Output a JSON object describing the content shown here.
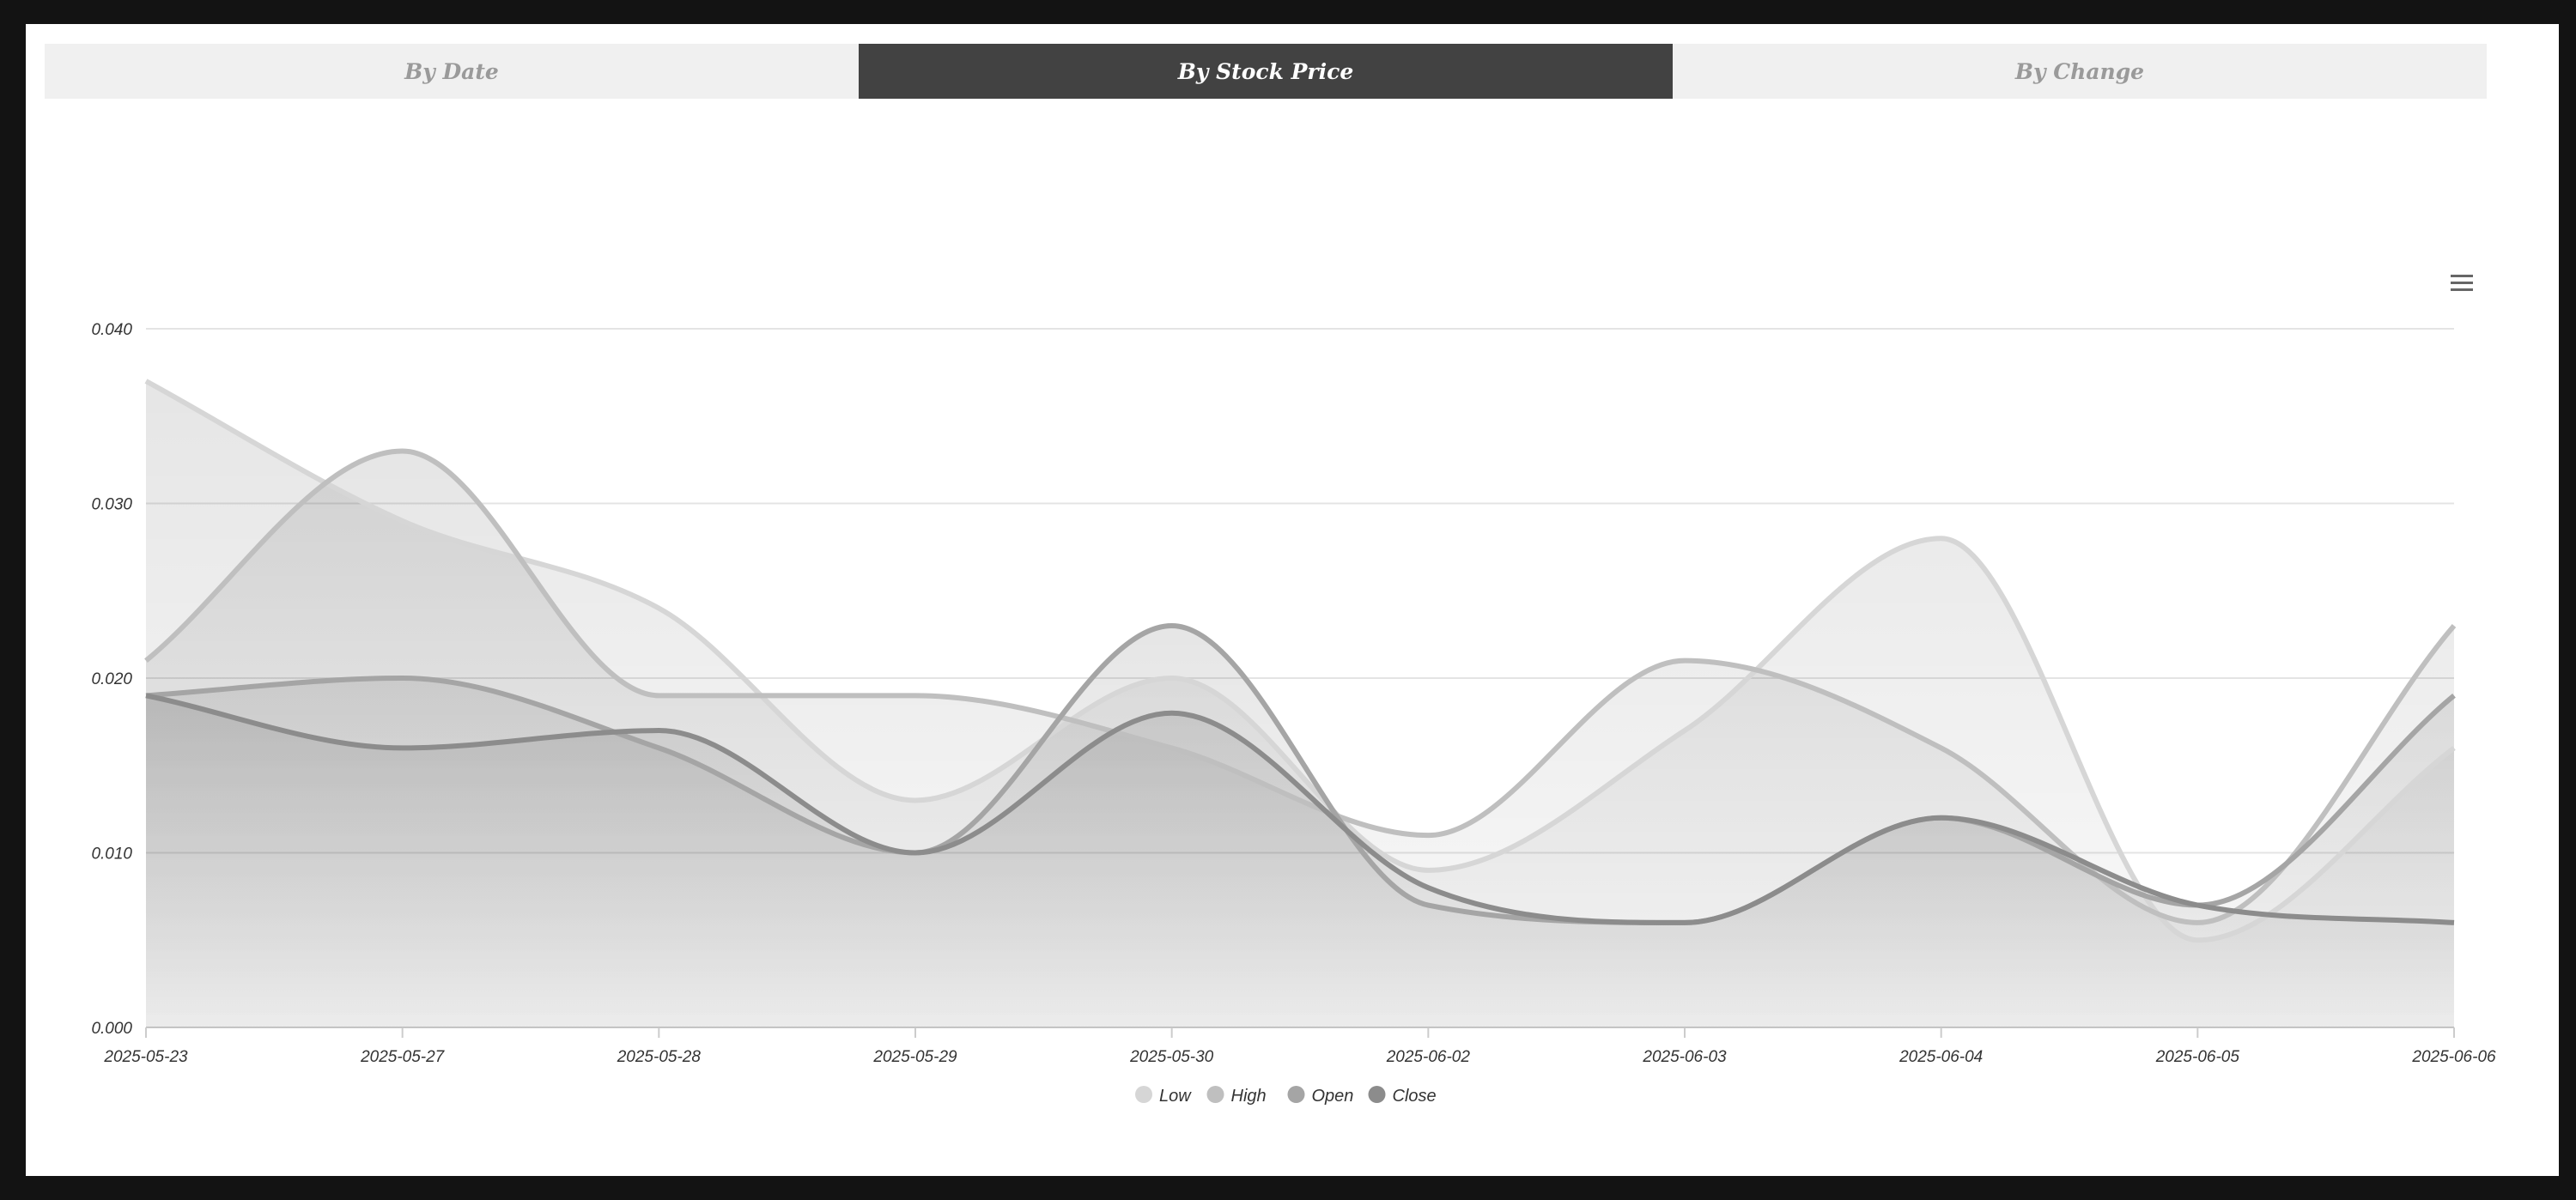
{
  "tabs": [
    "By Date",
    "By Stock Price",
    "By Change"
  ],
  "active_tab": 1,
  "menu_icon": "hamburger-menu-icon",
  "chart_data": {
    "type": "area",
    "categories": [
      "2025-05-23",
      "2025-05-27",
      "2025-05-28",
      "2025-05-29",
      "2025-05-30",
      "2025-06-02",
      "2025-06-03",
      "2025-06-04",
      "2025-06-05",
      "2025-06-06"
    ],
    "ylim": [
      0,
      0.04
    ],
    "yticks": [
      "0.000",
      "0.010",
      "0.020",
      "0.030",
      "0.040"
    ],
    "grid": true,
    "legend_position": "bottom-center",
    "series": [
      {
        "name": "Low",
        "color": "#d6d6d6",
        "values": [
          0.037,
          0.029,
          0.024,
          0.013,
          0.02,
          0.009,
          0.017,
          0.028,
          0.005,
          0.016
        ]
      },
      {
        "name": "High",
        "color": "#bfbfbf",
        "values": [
          0.021,
          0.033,
          0.019,
          0.019,
          0.016,
          0.011,
          0.021,
          0.016,
          0.006,
          0.023
        ]
      },
      {
        "name": "Open",
        "color": "#a5a5a5",
        "values": [
          0.019,
          0.02,
          0.016,
          0.01,
          0.023,
          0.007,
          0.006,
          0.012,
          0.007,
          0.019
        ]
      },
      {
        "name": "Close",
        "color": "#8c8c8c",
        "values": [
          0.019,
          0.016,
          0.017,
          0.01,
          0.018,
          0.008,
          0.006,
          0.012,
          0.007,
          0.006
        ]
      }
    ]
  }
}
